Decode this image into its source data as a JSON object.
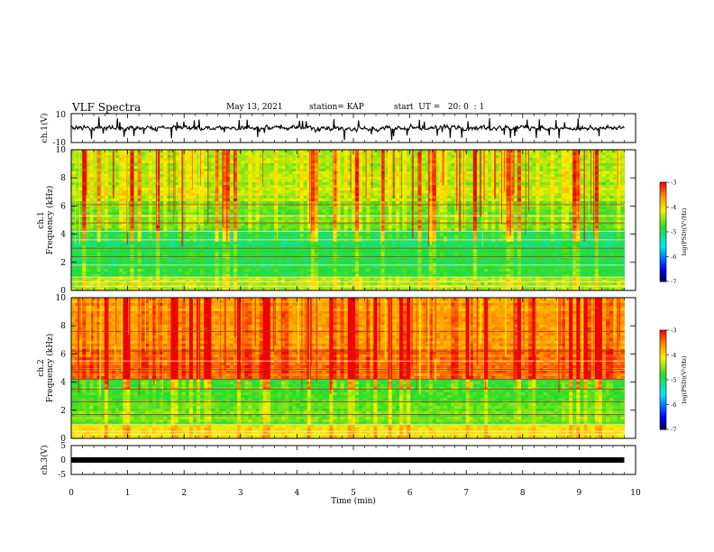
{
  "header": {
    "title": "VLF Spectra",
    "date": "May 13, 2021",
    "station": "station= KAP",
    "start": "start  UT =   20: 0  : 1"
  },
  "chart_data": [
    {
      "type": "line",
      "panel": "ch1-waveform",
      "ylabel": "ch.1(V)",
      "yticks": [
        "10",
        "-10"
      ],
      "ylim": [
        -10,
        10
      ],
      "xlim": [
        0,
        10
      ],
      "x_extent_min": 9.8,
      "note_amplitude_range": [
        -5,
        5
      ]
    },
    {
      "type": "heatmap",
      "panel": "ch1-spectrogram",
      "channel_label": "ch.1",
      "ylabel": "Frequency (kHz)",
      "ylim": [
        0,
        10
      ],
      "yticks": [
        "0",
        "2",
        "4",
        "6",
        "8",
        "10"
      ],
      "xlim": [
        0,
        10
      ],
      "colorbar": {
        "label": "log(PSD)(V²/Hz)",
        "ticks": [
          "-3",
          "-4",
          "-5",
          "-6",
          "-7"
        ],
        "range": [
          -7,
          -3
        ]
      }
    },
    {
      "type": "heatmap",
      "panel": "ch2-spectrogram",
      "channel_label": "ch.2",
      "ylabel": "Frequency (kHz)",
      "ylim": [
        0,
        10
      ],
      "yticks": [
        "0",
        "2",
        "4",
        "6",
        "8",
        "10"
      ],
      "xlim": [
        0,
        10
      ],
      "colorbar": {
        "label": "log(PSD)(V²/Hz)",
        "ticks": [
          "-3",
          "-4",
          "-5",
          "-6",
          "-7"
        ],
        "range": [
          -7,
          -3
        ]
      }
    },
    {
      "type": "line",
      "panel": "ch3-waveform",
      "ylabel": "ch.3(V)",
      "yticks": [
        "5",
        "0",
        "-5"
      ],
      "ylim": [
        -5,
        5
      ],
      "level": 0,
      "xlim": [
        0,
        10
      ]
    }
  ],
  "xaxis": {
    "label": "Time (min)",
    "ticks": [
      "0",
      "1",
      "2",
      "3",
      "4",
      "5",
      "6",
      "7",
      "8",
      "9",
      "10"
    ]
  }
}
